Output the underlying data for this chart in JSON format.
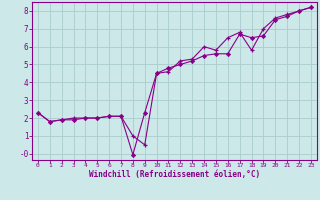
{
  "xlabel": "Windchill (Refroidissement éolien,°C)",
  "background_color": "#cce8e8",
  "grid_color": "#aacccc",
  "line_color": "#880088",
  "xlim": [
    -0.5,
    23.5
  ],
  "ylim": [
    -0.35,
    8.5
  ],
  "xticks": [
    0,
    1,
    2,
    3,
    4,
    5,
    6,
    7,
    8,
    9,
    10,
    11,
    12,
    13,
    14,
    15,
    16,
    17,
    18,
    19,
    20,
    21,
    22,
    23
  ],
  "yticks": [
    0,
    1,
    2,
    3,
    4,
    5,
    6,
    7,
    8
  ],
  "ytick_labels": [
    "-0",
    "1",
    "2",
    "3",
    "4",
    "5",
    "6",
    "7",
    "8"
  ],
  "line1_x": [
    0,
    1,
    2,
    3,
    4,
    5,
    6,
    7,
    8,
    9,
    10,
    11,
    12,
    13,
    14,
    15,
    16,
    17,
    18,
    19,
    20,
    21,
    22,
    23
  ],
  "line1_y": [
    2.3,
    1.8,
    1.9,
    1.9,
    2.0,
    2.0,
    2.1,
    2.1,
    -0.05,
    2.3,
    4.5,
    4.8,
    5.0,
    5.2,
    5.5,
    5.6,
    5.6,
    6.7,
    6.5,
    6.6,
    7.5,
    7.7,
    8.0,
    8.2
  ],
  "line2_x": [
    0,
    1,
    2,
    3,
    4,
    5,
    6,
    7,
    8,
    9,
    10,
    11,
    12,
    13,
    14,
    15,
    16,
    17,
    18,
    19,
    20,
    21,
    22,
    23
  ],
  "line2_y": [
    2.3,
    1.8,
    1.9,
    2.0,
    2.0,
    2.0,
    2.1,
    2.1,
    1.0,
    0.5,
    4.5,
    4.6,
    5.2,
    5.3,
    6.0,
    5.8,
    6.5,
    6.8,
    5.8,
    7.0,
    7.6,
    7.8,
    8.0,
    8.2
  ]
}
